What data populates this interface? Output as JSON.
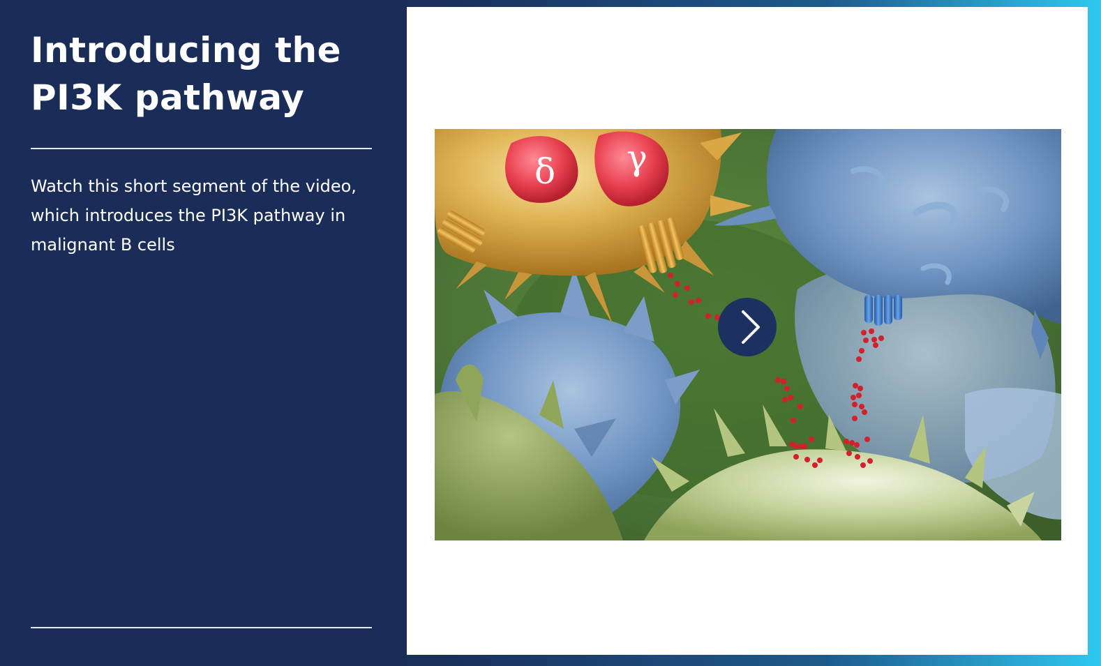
{
  "title_lines": [
    "Introducing the",
    "PI3K pathway"
  ],
  "description": "Watch this short segment of the video, which introduces the PI3K pathway in malignant B cells",
  "video": {
    "label_delta": "δ",
    "label_gamma": "γ",
    "play_icon": "chevron-right-icon"
  },
  "colors": {
    "panel": "#1a2d58",
    "play_button": "#1c315f",
    "accent": "#2ec8f0"
  }
}
